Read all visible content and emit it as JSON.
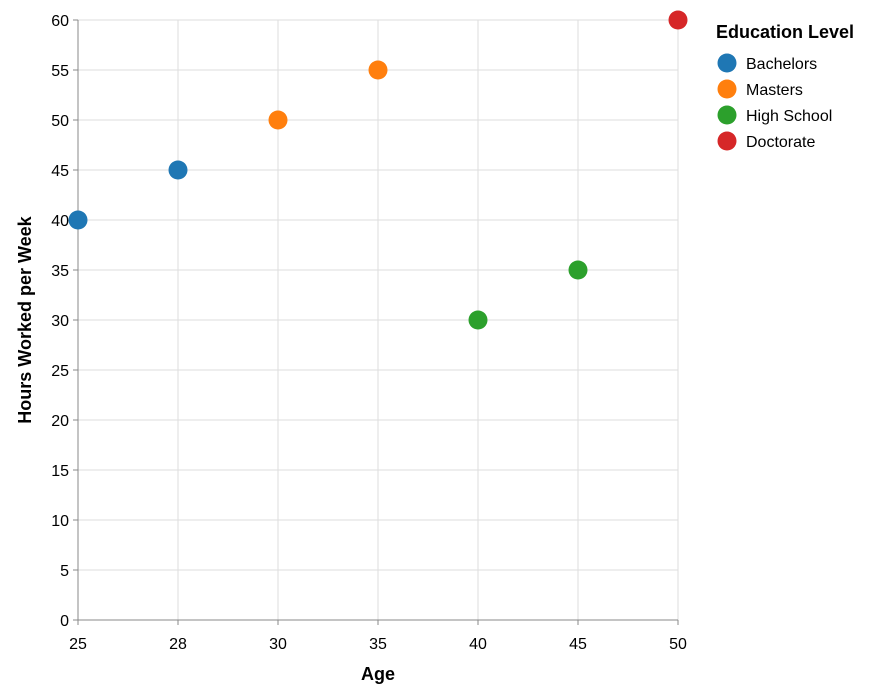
{
  "chart_data": {
    "type": "scatter",
    "xlabel": "Age",
    "ylabel": "Hours Worked per Week",
    "x_ticks": [
      25,
      28,
      30,
      35,
      40,
      45,
      50
    ],
    "y_ticks": [
      0,
      5,
      10,
      15,
      20,
      25,
      30,
      35,
      40,
      45,
      50,
      55,
      60
    ],
    "ylim": [
      0,
      60
    ],
    "grid": true,
    "legend": {
      "title": "Education Level",
      "placement": "right",
      "entries": [
        {
          "label": "Bachelors",
          "color": "#1f77b4"
        },
        {
          "label": "Masters",
          "color": "#ff7f0e"
        },
        {
          "label": "High School",
          "color": "#2ca02c"
        },
        {
          "label": "Doctorate",
          "color": "#d62728"
        }
      ]
    },
    "points": [
      {
        "x": 25,
        "y": 40,
        "category": "Bachelors"
      },
      {
        "x": 28,
        "y": 45,
        "category": "Bachelors"
      },
      {
        "x": 30,
        "y": 50,
        "category": "Masters"
      },
      {
        "x": 35,
        "y": 55,
        "category": "Masters"
      },
      {
        "x": 40,
        "y": 30,
        "category": "High School"
      },
      {
        "x": 45,
        "y": 35,
        "category": "High School"
      },
      {
        "x": 50,
        "y": 60,
        "category": "Doctorate"
      }
    ]
  }
}
